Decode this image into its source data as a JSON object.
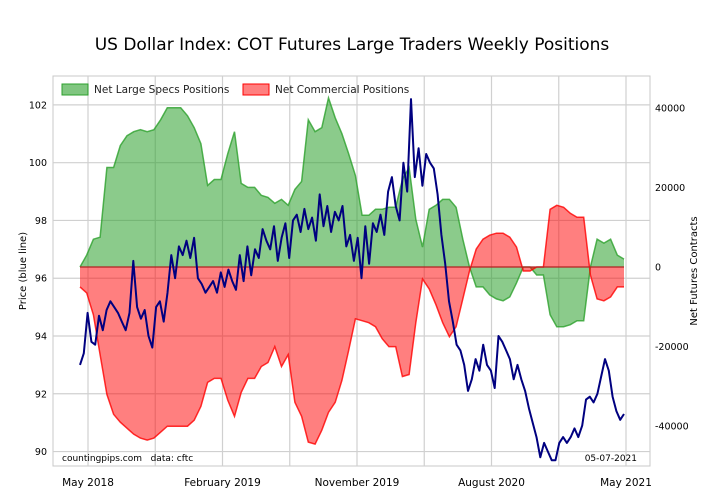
{
  "chart_data": {
    "type": "area",
    "title": "US Dollar Index: COT Futures Large Traders Weekly Positions",
    "xlabel": "",
    "ylabel_left": "Price (blue line)",
    "ylabel_right": "Net Futures Contracts",
    "x_tick_labels": [
      "May 2018",
      "February 2019",
      "November 2019",
      "August 2020",
      "May 2021"
    ],
    "left_axis": {
      "range": [
        89.5,
        103.0
      ],
      "ticks": [
        "90",
        "92",
        "94",
        "96",
        "98",
        "100",
        "102"
      ]
    },
    "right_axis": {
      "range": [
        -50000,
        48000
      ],
      "ticks": [
        "-40000",
        "-20000",
        "0",
        "20000",
        "40000"
      ]
    },
    "grid": true,
    "legend": {
      "placement": "top-left"
    },
    "series": [
      {
        "name": "Net Large Specs Positions",
        "axis": "right",
        "color": "#2ca02c",
        "values": [
          0,
          3000,
          7000,
          7500,
          25000,
          25000,
          30500,
          33000,
          34000,
          34500,
          34000,
          34500,
          37000,
          40000,
          40000,
          40000,
          38000,
          35000,
          31000,
          20500,
          22000,
          22000,
          28500,
          34000,
          21000,
          20000,
          20000,
          18000,
          17500,
          16000,
          17000,
          15500,
          19500,
          21500,
          37000,
          34000,
          35000,
          42500,
          37500,
          33500,
          28500,
          23000,
          13000,
          13000,
          14500,
          14500,
          15000,
          15000,
          22000,
          25000,
          12000,
          5000,
          14500,
          15500,
          17000,
          17000,
          15000,
          7000,
          0,
          -5000,
          -5000,
          -7000,
          -8000,
          -8500,
          -7500,
          -4000,
          0,
          0,
          -2000,
          -2000,
          -12000,
          -15000,
          -15000,
          -14500,
          -13500,
          -13500,
          0,
          7000,
          6000,
          7000,
          3000,
          2000
        ]
      },
      {
        "name": "Net Commercial Positions",
        "axis": "right",
        "color": "#ff0000",
        "values": [
          -5000,
          -6500,
          -12000,
          -22000,
          -32000,
          -37000,
          -39000,
          -40500,
          -42000,
          -43000,
          -43500,
          -43000,
          -41500,
          -40000,
          -40000,
          -40000,
          -40000,
          -38500,
          -35000,
          -29000,
          -28000,
          -28000,
          -33500,
          -37500,
          -31500,
          -28000,
          -28000,
          -25000,
          -24000,
          -20000,
          -25000,
          -22000,
          -34000,
          -37500,
          -44000,
          -44500,
          -41000,
          -36500,
          -34000,
          -28500,
          -21000,
          -13000,
          -13500,
          -14000,
          -15000,
          -18000,
          -20000,
          -20000,
          -27500,
          -27000,
          -14000,
          -3000,
          -5500,
          -9500,
          -14000,
          -17500,
          -15000,
          -8000,
          -1000,
          4500,
          7000,
          8000,
          8500,
          8500,
          7500,
          5000,
          -1000,
          -1000,
          0,
          0,
          14500,
          15500,
          15000,
          13500,
          12500,
          12500,
          -2000,
          -8000,
          -8500,
          -7500,
          -5000,
          -5000
        ]
      },
      {
        "name": "Price",
        "axis": "left",
        "color": "#000080",
        "values": [
          93.0,
          93.4,
          94.8,
          93.8,
          93.7,
          94.7,
          94.2,
          94.9,
          95.2,
          95.0,
          94.8,
          94.5,
          94.2,
          94.8,
          96.6,
          95.0,
          94.6,
          94.9,
          94.0,
          93.6,
          95.0,
          95.2,
          94.5,
          95.5,
          96.8,
          96.0,
          97.1,
          96.8,
          97.3,
          96.7,
          97.4,
          96.0,
          95.8,
          95.5,
          95.7,
          95.9,
          95.5,
          96.2,
          95.7,
          96.3,
          95.9,
          95.6,
          96.8,
          95.9,
          97.1,
          96.1,
          97.0,
          96.7,
          97.7,
          97.3,
          97.0,
          97.8,
          96.6,
          97.4,
          97.9,
          96.7,
          98.0,
          98.2,
          97.6,
          98.4,
          97.7,
          98.1,
          97.3,
          98.9,
          97.8,
          98.5,
          97.6,
          98.3,
          98.0,
          98.5,
          97.1,
          97.5,
          96.6,
          97.4,
          96.0,
          97.8,
          96.5,
          97.9,
          97.6,
          98.2,
          97.5,
          99.0,
          99.5,
          98.5,
          98.0,
          100.0,
          99.0,
          102.2,
          99.5,
          100.5,
          99.2,
          100.3,
          100.0,
          99.8,
          98.9,
          97.5,
          96.5,
          95.2,
          94.5,
          93.7,
          93.5,
          93.0,
          92.1,
          92.5,
          93.2,
          92.8,
          93.7,
          93.0,
          92.8,
          92.2,
          94.0,
          93.8,
          93.5,
          93.2,
          92.5,
          93.0,
          92.5,
          92.1,
          91.5,
          91.0,
          90.5,
          89.8,
          90.3,
          90.0,
          89.7,
          89.7,
          90.3,
          90.5,
          90.3,
          90.5,
          90.8,
          90.5,
          90.9,
          91.8,
          91.9,
          91.7,
          92.0,
          92.6,
          93.2,
          92.8,
          91.9,
          91.4,
          91.1,
          91.3
        ]
      }
    ],
    "annotations": [
      "countingpips.com   data: cftc",
      "05-07-2021"
    ]
  }
}
